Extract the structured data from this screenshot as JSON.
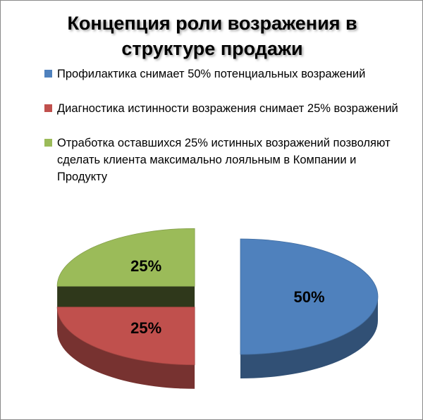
{
  "chart_data": {
    "type": "pie",
    "title": "Концепция роли возражения в структуре продажи",
    "legend_position": "top",
    "categories": [
      "Профилактика снимает 50% потенциальных возражений",
      "Диагностика истинности возражения снимает 25% возражений",
      "Отработка оставшихся 25% истинных возражений позволяют сделать клиента максимально лояльным в Компании и Продукту"
    ],
    "values": [
      50,
      25,
      25
    ],
    "data_labels": [
      "50%",
      "25%",
      "25%"
    ],
    "colors": [
      "#4f81bd",
      "#c0504d",
      "#9bbb59"
    ],
    "exploded": true,
    "three_d": true
  }
}
